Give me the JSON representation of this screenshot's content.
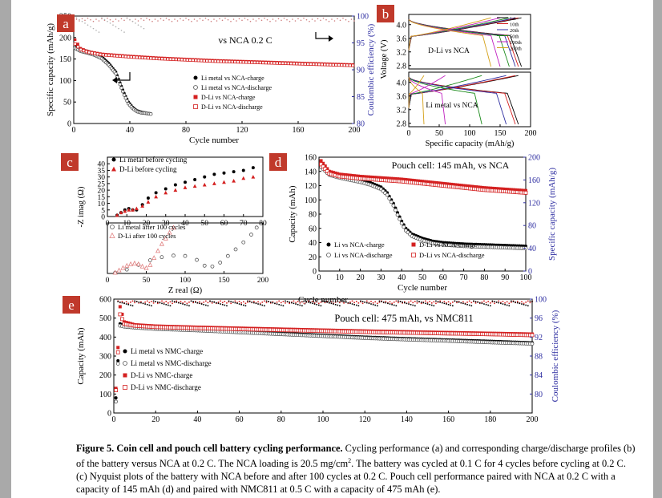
{
  "caption": {
    "bold": "Figure 5. Coin cell and pouch cell battery cycling performance.",
    "text_part1": " Cycling performance (a) and corresponding charge/discharge profiles (b) of the battery versus NCA at 0.2 C. The NCA loading is 20.5 mg/cm",
    "sup": "2",
    "text_part2": ". The battery was cycled at 0.1 C for 4 cycles before cycling at 0.2 C. (c) Nyquist plots of the battery with NCA before and after 100 cycles at 0.2 C. Pouch cell performance paired with NCA at 0.2 C with a capacity of 145 mAh (d) and paired with NMC811 at 0.5 C with a capacity of 475 mAh (e)."
  },
  "colors": {
    "red": "#d42020",
    "blue": "#2c2ca0",
    "label_bg": "#c0392b",
    "gray": "#999999"
  },
  "chart_data": [
    {
      "panel": "a",
      "type": "scatter",
      "annotation": "vs NCA 0.2 C",
      "xlabel": "Cycle number",
      "ylabel": "Specific capacity (mAh/g)",
      "y2label": "Coulombic efficiency (%)",
      "xlim": [
        0,
        200
      ],
      "ylim": [
        0,
        250
      ],
      "y2lim": [
        80,
        100
      ],
      "xticks": [
        "0",
        "40",
        "80",
        "120",
        "160",
        "200"
      ],
      "yticks": [
        "0",
        "50",
        "100",
        "150",
        "200",
        "250"
      ],
      "y2ticks": [
        "80",
        "85",
        "90",
        "95",
        "100"
      ],
      "legend": [
        "Li metal vs NCA-charge",
        "Li metal vs NCA-discharge",
        "D-Li vs NCA-charge",
        "D-Li vs NCA-discharge"
      ],
      "series": [
        {
          "name": "Li metal vs NCA-charge",
          "x": [
            1,
            5,
            10,
            15,
            20,
            25,
            30,
            33,
            36,
            39,
            42,
            45,
            48,
            51,
            55
          ],
          "y": [
            185,
            172,
            168,
            163,
            155,
            140,
            120,
            95,
            70,
            50,
            38,
            30,
            27,
            25,
            23
          ]
        },
        {
          "name": "Li metal vs NCA-discharge",
          "x": [
            1,
            5,
            10,
            15,
            20,
            25,
            30,
            33,
            36,
            39,
            42,
            45,
            48,
            51,
            55
          ],
          "y": [
            175,
            168,
            164,
            159,
            151,
            136,
            116,
            91,
            66,
            46,
            35,
            28,
            25,
            24,
            22
          ]
        },
        {
          "name": "D-Li vs NCA-charge",
          "x": [
            1,
            5,
            10,
            20,
            40,
            60,
            80,
            100,
            120,
            140,
            160,
            180,
            200
          ],
          "y": [
            195,
            175,
            168,
            162,
            157,
            153,
            150,
            147,
            145,
            143,
            141,
            139,
            137
          ]
        },
        {
          "name": "D-Li vs NCA-discharge",
          "x": [
            1,
            5,
            10,
            20,
            40,
            60,
            80,
            100,
            120,
            140,
            160,
            180,
            200
          ],
          "y": [
            185,
            172,
            166,
            160,
            155,
            151,
            148,
            145,
            143,
            141,
            139,
            137,
            135
          ]
        }
      ]
    },
    {
      "panel": "b",
      "type": "line",
      "xlabel": "Specific capacity (mAh/g)",
      "ylabel": "Voltage (V)",
      "xlim": [
        0,
        200
      ],
      "ylim": [
        2.7,
        4.3
      ],
      "xticks": [
        "0",
        "50",
        "100",
        "150",
        "200"
      ],
      "yticks": [
        "2.8",
        "3.2",
        "3.6",
        "4.0"
      ],
      "labels": [
        "D-Li vs NCA",
        "Li metal vs NCA"
      ],
      "legend": [
        "1st",
        "10th",
        "20th",
        "50th",
        "100th",
        "200th"
      ],
      "series_colors": [
        "#000000",
        "#d42020",
        "#2c2ca0",
        "#1a8a1a",
        "#c020c0",
        "#d4a017"
      ],
      "top_end_caps": [
        185,
        180,
        175,
        165,
        150,
        135
      ],
      "bottom_end_caps": [
        180,
        175,
        160,
        120,
        60,
        25
      ]
    },
    {
      "panel": "c",
      "type": "scatter",
      "xlabel": "Z real (Ω)",
      "ylabel": "-Z imag (Ω)",
      "top": {
        "xlim": [
          0,
          80
        ],
        "ylim": [
          0,
          45
        ],
        "xticks": [
          "0",
          "10",
          "20",
          "30",
          "40",
          "50",
          "60",
          "70",
          "80"
        ],
        "yticks": [
          "0",
          "5",
          "10",
          "15",
          "20",
          "25",
          "30",
          "35",
          "40"
        ],
        "legend": [
          "Li metal before cycling",
          "D-Li before cycling"
        ],
        "series": [
          {
            "name": "Li metal before cycling",
            "x": [
              5,
              7,
              9,
              11,
              13,
              15,
              18,
              21,
              25,
              30,
              35,
              40,
              45,
              50,
              55,
              60,
              65,
              70,
              75
            ],
            "y": [
              1,
              3,
              5,
              6,
              5,
              5,
              9,
              14,
              18,
              21,
              24,
              26,
              28,
              30,
              32,
              33,
              34,
              35,
              37
            ]
          },
          {
            "name": "D-Li before cycling",
            "x": [
              5,
              7,
              9,
              11,
              13,
              15,
              18,
              21,
              25,
              30,
              35,
              40,
              45,
              50,
              55,
              60,
              65,
              70,
              75
            ],
            "y": [
              1,
              3,
              4,
              5,
              5,
              6,
              8,
              11,
              15,
              18,
              20,
              22,
              23,
              24,
              25,
              26,
              27,
              29,
              30
            ]
          }
        ]
      },
      "bottom": {
        "xlim": [
          0,
          200
        ],
        "ylim": [
          0,
          130
        ],
        "xticks": [
          "0",
          "50",
          "100",
          "150",
          "200"
        ],
        "legend": [
          "Li metal after 100 cycles",
          "D-Li after 100 cycles"
        ],
        "series": [
          {
            "name": "Li metal after 100 cycles",
            "x": [
              10,
              25,
              40,
              55,
              70,
              85,
              100,
              115,
              125,
              135,
              145,
              155,
              165,
              175,
              185,
              192
            ],
            "y": [
              2,
              10,
              22,
              34,
              42,
              46,
              45,
              35,
              20,
              18,
              28,
              45,
              62,
              80,
              100,
              118
            ]
          },
          {
            "name": "D-Li after 100 cycles",
            "x": [
              10,
              15,
              20,
              25,
              30,
              35,
              40,
              45,
              50,
              55,
              60,
              65,
              70,
              75,
              80,
              85
            ],
            "y": [
              2,
              8,
              14,
              20,
              24,
              26,
              24,
              18,
              14,
              22,
              40,
              58,
              76,
              90,
              105,
              118
            ]
          }
        ]
      }
    },
    {
      "panel": "d",
      "type": "scatter",
      "annotation": "Pouch cell: 145 mAh, vs NCA",
      "xlabel": "Cycle number",
      "ylabel": "Capacity (mAh)",
      "y2label": "Specific capacity (mAh/g)",
      "xlim": [
        0,
        100
      ],
      "ylim": [
        0,
        160
      ],
      "y2lim": [
        0,
        200
      ],
      "xticks": [
        "0",
        "10",
        "20",
        "30",
        "40",
        "50",
        "60",
        "70",
        "80",
        "90",
        "100"
      ],
      "yticks": [
        "0",
        "20",
        "40",
        "60",
        "80",
        "100",
        "120",
        "140",
        "160"
      ],
      "y2ticks": [
        "0",
        "40",
        "80",
        "120",
        "160",
        "200"
      ],
      "legend": [
        "Li vs NCA-charge",
        "Li vs NCA-discharge",
        "D-Li vs NCA-charge",
        "D-Li vs NCA-discharge"
      ],
      "series": [
        {
          "name": "Li vs NCA-charge",
          "x": [
            1,
            5,
            10,
            15,
            20,
            25,
            30,
            33,
            36,
            38,
            40,
            42,
            45,
            50,
            55,
            60,
            70,
            80,
            90,
            100
          ],
          "y": [
            150,
            138,
            134,
            131,
            128,
            124,
            118,
            110,
            95,
            82,
            70,
            60,
            52,
            46,
            42,
            40,
            38,
            37,
            36,
            35
          ]
        },
        {
          "name": "Li vs NCA-discharge",
          "x": [
            1,
            5,
            10,
            15,
            20,
            25,
            30,
            33,
            36,
            38,
            40,
            42,
            45,
            50,
            55,
            60,
            70,
            80,
            90,
            100
          ],
          "y": [
            146,
            135,
            131,
            128,
            125,
            121,
            115,
            107,
            92,
            79,
            67,
            57,
            49,
            43,
            39,
            37,
            35,
            34,
            33,
            32
          ]
        },
        {
          "name": "D-Li vs NCA-charge",
          "x": [
            1,
            5,
            10,
            20,
            30,
            40,
            50,
            60,
            70,
            80,
            90,
            100
          ],
          "y": [
            155,
            140,
            136,
            133,
            131,
            129,
            126,
            123,
            120,
            117,
            115,
            113
          ]
        },
        {
          "name": "D-Li vs NCA-discharge",
          "x": [
            1,
            5,
            10,
            20,
            30,
            40,
            50,
            60,
            70,
            80,
            90,
            100
          ],
          "y": [
            150,
            137,
            133,
            130,
            128,
            126,
            123,
            120,
            117,
            114,
            112,
            110
          ]
        }
      ]
    },
    {
      "panel": "e",
      "type": "scatter",
      "annotation": "Pouch cell: 475 mAh, vs NMC811",
      "xlabel": "Cycle number",
      "ylabel": "Capacity (mAh)",
      "y2label": "Coulombic efficiency (%)",
      "xlim": [
        0,
        200
      ],
      "ylim": [
        0,
        600
      ],
      "y2lim": [
        76,
        100
      ],
      "xticks": [
        "0",
        "20",
        "40",
        "60",
        "80",
        "100",
        "120",
        "140",
        "160",
        "180",
        "200"
      ],
      "yticks": [
        "0",
        "100",
        "200",
        "300",
        "400",
        "500",
        "600"
      ],
      "y2ticks": [
        "80",
        "84",
        "88",
        "92",
        "96",
        "100"
      ],
      "legend": [
        "Li metal vs NMC-charge",
        "Li metal vs NMC-discharge",
        "D-Li vs NMC-charge",
        "D-Li vs NMC-discharge"
      ],
      "series": [
        {
          "name": "Li metal vs NMC-charge",
          "x": [
            1,
            3,
            5,
            10,
            20,
            40,
            60,
            80,
            100,
            120,
            140,
            160,
            180,
            200
          ],
          "y": [
            80,
            470,
            462,
            455,
            448,
            440,
            430,
            420,
            410,
            400,
            392,
            385,
            378,
            370
          ]
        },
        {
          "name": "Li metal vs NMC-discharge",
          "x": [
            1,
            3,
            5,
            10,
            20,
            40,
            60,
            80,
            100,
            120,
            140,
            160,
            180,
            200
          ],
          "y": [
            60,
            460,
            455,
            450,
            443,
            435,
            425,
            415,
            405,
            395,
            387,
            380,
            372,
            365
          ]
        },
        {
          "name": "D-Li vs NMC-charge",
          "x": [
            1,
            3,
            5,
            10,
            20,
            40,
            60,
            80,
            100,
            120,
            140,
            160,
            180,
            200
          ],
          "y": [
            130,
            560,
            480,
            465,
            458,
            452,
            447,
            442,
            437,
            432,
            428,
            424,
            420,
            416
          ]
        },
        {
          "name": "D-Li vs NMC-discharge",
          "x": [
            1,
            3,
            5,
            10,
            20,
            40,
            60,
            80,
            100,
            120,
            140,
            160,
            180,
            200
          ],
          "y": [
            120,
            520,
            470,
            460,
            453,
            447,
            442,
            437,
            432,
            427,
            423,
            419,
            415,
            410
          ]
        }
      ]
    }
  ]
}
